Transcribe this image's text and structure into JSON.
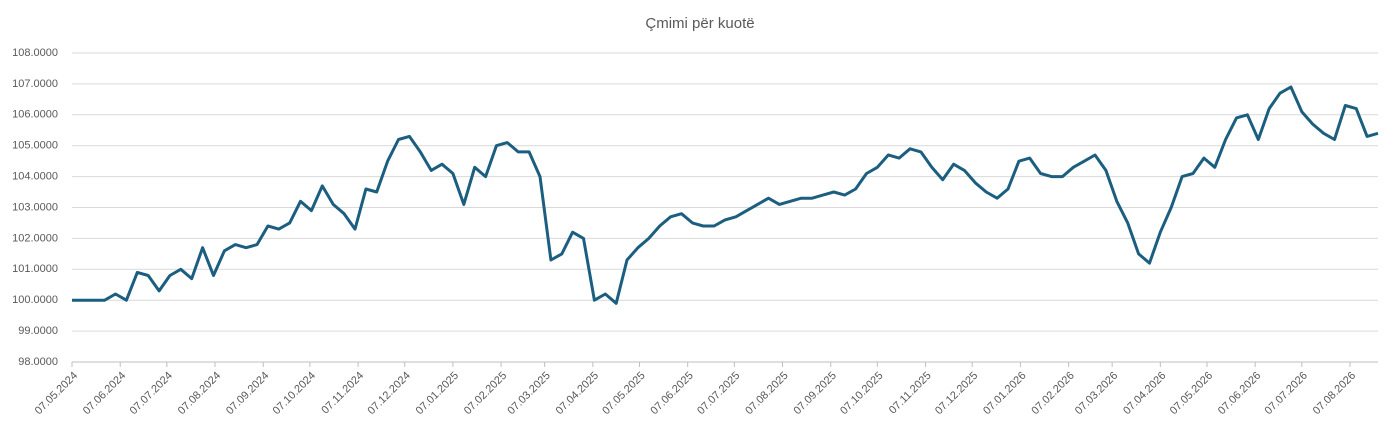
{
  "chart_data": {
    "type": "line",
    "title": "Çmimi për kuotë",
    "x": [
      "07.05.2024",
      "14.05.2024",
      "21.05.2024",
      "28.05.2024",
      "04.06.2024",
      "11.06.2024",
      "18.06.2024",
      "25.06.2024",
      "02.07.2024",
      "09.07.2024",
      "16.07.2024",
      "23.07.2024",
      "30.07.2024",
      "06.08.2024",
      "13.08.2024",
      "20.08.2024",
      "27.08.2024",
      "03.09.2024",
      "10.09.2024",
      "17.09.2024",
      "24.09.2024",
      "01.10.2024",
      "08.10.2024",
      "15.10.2024",
      "22.10.2024",
      "29.10.2024",
      "05.11.2024",
      "12.11.2024",
      "19.11.2024",
      "26.11.2024",
      "03.12.2024",
      "10.12.2024",
      "17.12.2024",
      "24.12.2024",
      "31.12.2024",
      "07.01.2025",
      "14.01.2025",
      "21.01.2025",
      "28.01.2025",
      "04.02.2025",
      "11.02.2025",
      "18.02.2025",
      "25.02.2025",
      "04.03.2025",
      "11.03.2025",
      "18.03.2025",
      "25.03.2025",
      "01.04.2025",
      "08.04.2025",
      "15.04.2025",
      "22.04.2025",
      "29.04.2025",
      "06.05.2025",
      "13.05.2025",
      "20.05.2025",
      "27.05.2025",
      "03.06.2025",
      "10.06.2025",
      "17.06.2025",
      "24.06.2025",
      "01.07.2025",
      "08.07.2025",
      "15.07.2025",
      "22.07.2025",
      "29.07.2025",
      "05.08.2025",
      "12.08.2025",
      "19.08.2025",
      "26.08.2025",
      "02.09.2025",
      "09.09.2025",
      "16.09.2025",
      "23.09.2025",
      "30.09.2025",
      "07.10.2025",
      "14.10.2025",
      "21.10.2025",
      "28.10.2025",
      "04.11.2025",
      "11.11.2025",
      "18.11.2025",
      "25.11.2025",
      "02.12.2025",
      "09.12.2025",
      "16.12.2025",
      "23.12.2025",
      "30.12.2025",
      "06.01.2026",
      "13.01.2026",
      "20.01.2026",
      "27.01.2026",
      "03.02.2026",
      "10.02.2026",
      "17.02.2026",
      "24.02.2026",
      "03.03.2026",
      "10.03.2026",
      "17.03.2026",
      "24.03.2026",
      "31.03.2026",
      "07.04.2026",
      "14.04.2026",
      "21.04.2026",
      "28.04.2026",
      "05.05.2026",
      "12.05.2026",
      "19.05.2026",
      "26.05.2026",
      "02.06.2026",
      "09.06.2026",
      "16.06.2026",
      "23.06.2026",
      "30.06.2026",
      "07.07.2026",
      "14.07.2026",
      "21.07.2026",
      "28.07.2026",
      "04.08.2026",
      "11.08.2026",
      "18.08.2026",
      "25.08.2026"
    ],
    "series": [
      {
        "name": "Çmimi për kuotë",
        "color": "#1b5e80",
        "values": [
          100,
          100,
          100,
          100,
          100.2,
          100.0,
          100.9,
          100.8,
          100.3,
          100.8,
          101.0,
          100.7,
          101.7,
          100.8,
          101.6,
          101.8,
          101.7,
          101.8,
          102.4,
          102.3,
          102.5,
          103.2,
          102.9,
          103.7,
          103.1,
          102.8,
          102.3,
          103.6,
          103.5,
          104.5,
          105.2,
          105.3,
          104.8,
          104.2,
          104.4,
          104.1,
          103.1,
          104.3,
          104.0,
          105.0,
          105.1,
          104.8,
          104.8,
          104.0,
          101.3,
          101.5,
          102.2,
          102.0,
          100.0,
          100.2,
          99.9,
          101.3,
          101.7,
          102.0,
          102.4,
          102.7,
          102.8,
          102.5,
          102.4,
          102.4,
          102.6,
          102.7,
          102.9,
          103.1,
          103.3,
          103.1,
          103.2,
          103.3,
          103.3,
          103.4,
          103.5,
          103.4,
          103.6,
          104.1,
          104.3,
          104.7,
          104.6,
          104.9,
          104.8,
          104.3,
          103.9,
          104.4,
          104.2,
          103.8,
          103.5,
          103.3,
          103.6,
          104.5,
          104.6,
          104.1,
          104.0,
          104.0,
          104.3,
          104.5,
          104.7,
          104.2,
          103.2,
          102.5,
          101.5,
          101.2,
          102.2,
          103.0,
          104.0,
          104.1,
          104.6,
          104.3,
          105.2,
          105.9,
          106.0,
          105.2,
          106.2,
          106.7,
          106.9,
          106.1,
          105.7,
          105.4,
          105.2,
          106.3,
          106.2,
          105.3,
          105.4
        ]
      }
    ],
    "xlim": [
      "07.05.2024",
      "25.08.2026"
    ],
    "xticks": [
      "07.05.2024",
      "07.06.2024",
      "07.07.2024",
      "07.08.2024",
      "07.09.2024",
      "07.10.2024",
      "07.11.2024",
      "07.12.2024",
      "07.01.2025",
      "07.02.2025",
      "07.03.2025",
      "07.04.2025",
      "07.05.2025",
      "07.06.2025",
      "07.07.2025",
      "07.08.2025",
      "07.09.2025",
      "07.10.2025",
      "07.11.2025",
      "07.12.2025",
      "07.01.2026",
      "07.02.2026",
      "07.03.2026",
      "07.04.2026",
      "07.05.2026",
      "07.06.2026",
      "07.07.2026",
      "07.08.2026"
    ],
    "ylim": [
      98,
      108
    ],
    "yticks": [
      {
        "value": 98,
        "label": "98.0000"
      },
      {
        "value": 99,
        "label": "99.0000"
      },
      {
        "value": 100,
        "label": "100.0000"
      },
      {
        "value": 101,
        "label": "101.0000"
      },
      {
        "value": 102,
        "label": "102.0000"
      },
      {
        "value": 103,
        "label": "103.0000"
      },
      {
        "value": 104,
        "label": "104.0000"
      },
      {
        "value": 105,
        "label": "105.0000"
      },
      {
        "value": 106,
        "label": "106.0000"
      },
      {
        "value": 107,
        "label": "107.0000"
      },
      {
        "value": 108,
        "label": "108.0000"
      }
    ],
    "grid": true
  }
}
